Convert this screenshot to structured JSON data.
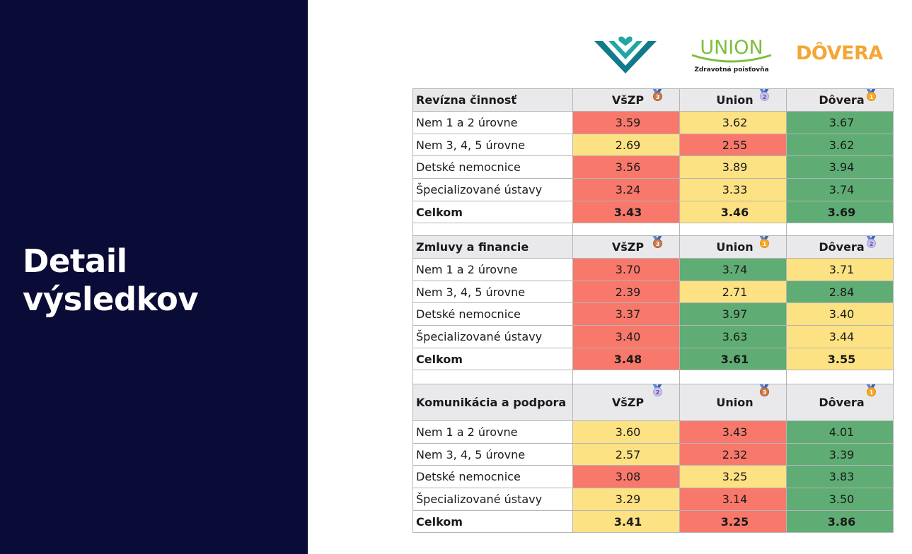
{
  "slide": {
    "title_line1": "Detail",
    "title_line2": "výsledkov"
  },
  "logos": {
    "union_name": "UNION",
    "union_subtitle": "Zdravotná poisťovňa",
    "dovera_name": "DÔVERA"
  },
  "colors": {
    "panel": "#0b0b37",
    "red": "#f8786b",
    "yellow": "#fde283",
    "green": "#5fad74",
    "dovera_brand": "#f4a636",
    "vszp_brand": "#117a8b"
  },
  "sections": [
    {
      "title": "Revízna činnosť",
      "insurers": [
        {
          "name": "VšZP",
          "medal": "3",
          "medal_type": "bronze"
        },
        {
          "name": "Union",
          "medal": "2",
          "medal_type": "silver"
        },
        {
          "name": "Dôvera",
          "medal": "1",
          "medal_type": "gold"
        }
      ],
      "rows": [
        {
          "label": "Nem 1 a 2 úrovne",
          "values": [
            "3.59",
            "3.62",
            "3.67"
          ],
          "colors": [
            "red",
            "yellow",
            "green"
          ]
        },
        {
          "label": "Nem 3, 4, 5 úrovne",
          "values": [
            "2.69",
            "2.55",
            "3.62"
          ],
          "colors": [
            "yellow",
            "red",
            "green"
          ]
        },
        {
          "label": "Detské nemocnice",
          "values": [
            "3.56",
            "3.89",
            "3.94"
          ],
          "colors": [
            "red",
            "yellow",
            "green"
          ]
        },
        {
          "label": "Špecializované ústavy",
          "values": [
            "3.24",
            "3.33",
            "3.74"
          ],
          "colors": [
            "red",
            "yellow",
            "green"
          ]
        },
        {
          "label": "Celkom",
          "values": [
            "3.43",
            "3.46",
            "3.69"
          ],
          "colors": [
            "red",
            "yellow",
            "green"
          ]
        }
      ]
    },
    {
      "title": "Zmluvy a financie",
      "insurers": [
        {
          "name": "VšZP",
          "medal": "3",
          "medal_type": "bronze"
        },
        {
          "name": "Union",
          "medal": "1",
          "medal_type": "gold"
        },
        {
          "name": "Dôvera",
          "medal": "2",
          "medal_type": "silver"
        }
      ],
      "rows": [
        {
          "label": "Nem 1 a 2 úrovne",
          "values": [
            "3.70",
            "3.74",
            "3.71"
          ],
          "colors": [
            "red",
            "green",
            "yellow"
          ]
        },
        {
          "label": "Nem 3, 4, 5 úrovne",
          "values": [
            "2.39",
            "2.71",
            "2.84"
          ],
          "colors": [
            "red",
            "yellow",
            "green"
          ]
        },
        {
          "label": "Detské nemocnice",
          "values": [
            "3.37",
            "3.97",
            "3.40"
          ],
          "colors": [
            "red",
            "green",
            "yellow"
          ]
        },
        {
          "label": "Špecializované ústavy",
          "values": [
            "3.40",
            "3.63",
            "3.44"
          ],
          "colors": [
            "red",
            "green",
            "yellow"
          ]
        },
        {
          "label": "Celkom",
          "values": [
            "3.48",
            "3.61",
            "3.55"
          ],
          "colors": [
            "red",
            "green",
            "yellow"
          ]
        }
      ]
    },
    {
      "title": "Komunikácia a podpora",
      "insurers": [
        {
          "name": "VšZP",
          "medal": "2",
          "medal_type": "silver"
        },
        {
          "name": "Union",
          "medal": "3",
          "medal_type": "bronze"
        },
        {
          "name": "Dôvera",
          "medal": "1",
          "medal_type": "gold"
        }
      ],
      "rows": [
        {
          "label": "Nem 1 a 2 úrovne",
          "values": [
            "3.60",
            "3.43",
            "4.01"
          ],
          "colors": [
            "yellow",
            "red",
            "green"
          ]
        },
        {
          "label": "Nem 3, 4, 5 úrovne",
          "values": [
            "2.57",
            "2.32",
            "3.39"
          ],
          "colors": [
            "yellow",
            "red",
            "green"
          ]
        },
        {
          "label": "Detské nemocnice",
          "values": [
            "3.08",
            "3.25",
            "3.83"
          ],
          "colors": [
            "red",
            "yellow",
            "green"
          ]
        },
        {
          "label": "Špecializované ústavy",
          "values": [
            "3.29",
            "3.14",
            "3.50"
          ],
          "colors": [
            "yellow",
            "red",
            "green"
          ]
        },
        {
          "label": "Celkom",
          "values": [
            "3.41",
            "3.25",
            "3.86"
          ],
          "colors": [
            "yellow",
            "red",
            "green"
          ]
        }
      ]
    }
  ]
}
